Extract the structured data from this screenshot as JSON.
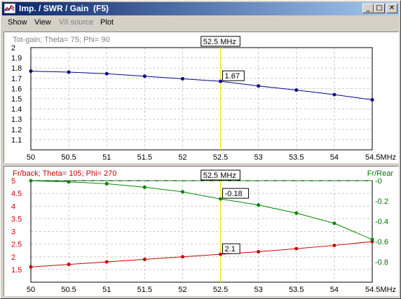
{
  "window": {
    "title": "Imp. / SWR / Gain  (F5)",
    "controls": {
      "minimize": "_",
      "maximize": "□",
      "close": "✕"
    }
  },
  "menu": [
    {
      "label": "Show",
      "enabled": true
    },
    {
      "label": "View",
      "enabled": true
    },
    {
      "label": "V/I source",
      "enabled": false
    },
    {
      "label": "Plot",
      "enabled": true
    }
  ],
  "x_axis": {
    "ticks": [
      "50",
      "50.5",
      "51",
      "51.5",
      "52",
      "52.5",
      "53",
      "53.5",
      "54",
      "54.5MHz"
    ]
  },
  "cursor": {
    "frequency": 52.5,
    "label": "52.5 MHz"
  },
  "chart_data": [
    {
      "type": "line",
      "title": "Tot-gain; Theta= 75; Phi= 90",
      "x": [
        50,
        50.5,
        51,
        51.5,
        52,
        52.5,
        53,
        53.5,
        54,
        54.5
      ],
      "xlim": [
        50,
        54.5
      ],
      "ylim": [
        1,
        2
      ],
      "yticks": [
        "1.1",
        "1.2",
        "1.3",
        "1.4",
        "1.5",
        "1.6",
        "1.7",
        "1.8",
        "1.9",
        "2"
      ],
      "grid": true,
      "series": [
        {
          "values": [
            1.77,
            1.76,
            1.745,
            1.72,
            1.695,
            1.67,
            1.625,
            1.585,
            1.54,
            1.49
          ],
          "color": "#00008b"
        }
      ],
      "cursor_value": "1.67"
    },
    {
      "type": "line",
      "title": "Fr/back; Theta= 105; Phi= 270",
      "right_title": "Fr/Rear",
      "x": [
        50,
        50.5,
        51,
        51.5,
        52,
        52.5,
        53,
        53.5,
        54,
        54.5
      ],
      "xlim": [
        50,
        54.5
      ],
      "left_axis": {
        "ylim": [
          1,
          5
        ],
        "ticks": [
          "1.5",
          "2",
          "2.5",
          "3",
          "3.5",
          "4",
          "4.5",
          "5"
        ],
        "color": "#cc0000"
      },
      "right_axis": {
        "ylim": [
          -1,
          0
        ],
        "ticks": [
          "-0",
          "-0.2",
          "-0.4",
          "-0.6",
          "-0.8"
        ],
        "color": "#007700"
      },
      "grid": true,
      "series": [
        {
          "axis": "left",
          "values": [
            1.6,
            1.7,
            1.8,
            1.9,
            2.0,
            2.1,
            2.2,
            2.32,
            2.45,
            2.6
          ],
          "color": "#cc0000"
        },
        {
          "axis": "right",
          "values": [
            -0.001,
            -0.012,
            -0.03,
            -0.065,
            -0.11,
            -0.18,
            -0.24,
            -0.32,
            -0.42,
            -0.58
          ],
          "color": "#008800"
        }
      ],
      "cursor_values": {
        "left": "2.1",
        "right": "-0.18"
      }
    }
  ]
}
